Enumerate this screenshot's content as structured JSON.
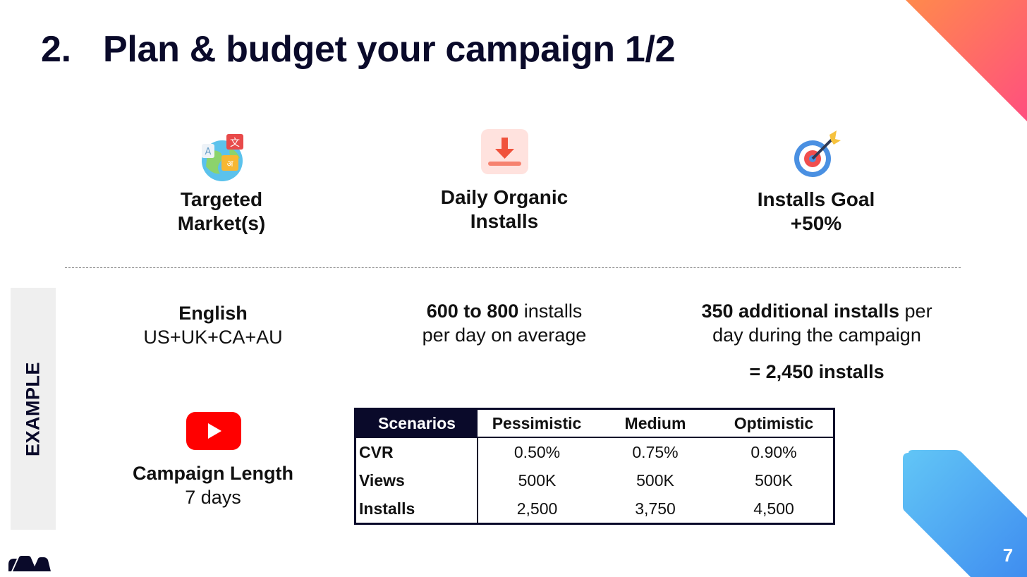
{
  "slide": {
    "title_number": "2.",
    "title_text": "Plan & budget your campaign 1/2",
    "page_number": "7"
  },
  "colors": {
    "navy": "#0a0a2a",
    "corner_top_from": "#ff7f50",
    "corner_top_to": "#ff4d7a",
    "corner_bottom_from": "#5fc3f5",
    "corner_bottom_to": "#3f8ef0",
    "download_bg": "#ffe3e0",
    "download_icon": "#f0523c",
    "youtube_red": "#ff0000"
  },
  "metrics": {
    "targeted": {
      "icon": "globe-translate-icon",
      "label_line1": "Targeted",
      "label_line2": "Market(s)"
    },
    "organic": {
      "icon": "download-icon",
      "label_line1": "Daily Organic",
      "label_line2": "Installs"
    },
    "goal": {
      "icon": "target-icon",
      "label_line1": "Installs Goal",
      "label_line2": "+50%"
    }
  },
  "example": {
    "band_label": "EXAMPLE",
    "market": {
      "line1": "English",
      "line2": "US+UK+CA+AU"
    },
    "organic": {
      "bold": "600 to 800",
      "rest": " installs",
      "line2": "per day on average"
    },
    "goal": {
      "bold": "350 additional installs",
      "rest": " per",
      "line2": "day during the campaign",
      "total": "= 2,450 installs"
    },
    "campaign": {
      "icon": "youtube-icon",
      "label": "Campaign Length",
      "value": "7 days"
    }
  },
  "table": {
    "headers": [
      "Scenarios",
      "Pessimistic",
      "Medium",
      "Optimistic"
    ],
    "rows": [
      {
        "label": "CVR",
        "values": [
          "0.50%",
          "0.75%",
          "0.90%"
        ]
      },
      {
        "label": "Views",
        "values": [
          "500K",
          "500K",
          "500K"
        ]
      },
      {
        "label": "Installs",
        "values": [
          "2,500",
          "3,750",
          "4,500"
        ]
      }
    ]
  }
}
